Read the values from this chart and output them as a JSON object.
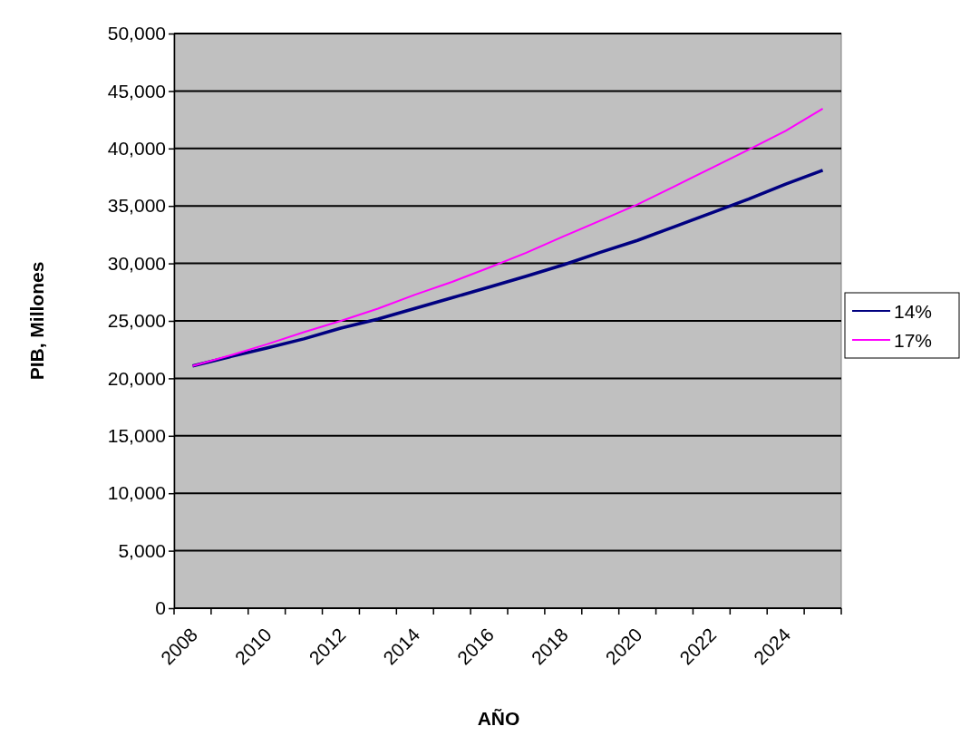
{
  "chart_data": {
    "type": "line",
    "xlabel": "AÑO",
    "ylabel": "PIB, Millones",
    "categories": [
      "2008",
      null,
      "2010",
      null,
      "2012",
      null,
      "2014",
      null,
      "2016",
      null,
      "2018",
      null,
      "2020",
      null,
      "2022",
      null,
      "2024",
      null
    ],
    "series": [
      {
        "name": "14%",
        "color": "#000080",
        "values": [
          21080,
          21870,
          22640,
          23430,
          24370,
          25160,
          26080,
          27010,
          27940,
          28880,
          29870,
          30960,
          32000,
          33200,
          34400,
          35600,
          36900,
          38100
        ]
      },
      {
        "name": "17%",
        "color": "#ff00ff",
        "values": [
          21080,
          21980,
          22960,
          24020,
          25000,
          26060,
          27280,
          28390,
          29630,
          30930,
          32340,
          33720,
          35130,
          36700,
          38300,
          39890,
          41540,
          43460
        ]
      }
    ],
    "ylim": [
      0,
      50000
    ],
    "yticks": [
      {
        "value": 0,
        "label": "0"
      },
      {
        "value": 5000,
        "label": "5,000"
      },
      {
        "value": 10000,
        "label": "10,000"
      },
      {
        "value": 15000,
        "label": "15,000"
      },
      {
        "value": 20000,
        "label": "20,000"
      },
      {
        "value": 25000,
        "label": "25,000"
      },
      {
        "value": 30000,
        "label": "30,000"
      },
      {
        "value": 35000,
        "label": "35,000"
      },
      {
        "value": 40000,
        "label": "40,000"
      },
      {
        "value": 45000,
        "label": "45,000"
      },
      {
        "value": 50000,
        "label": "50,000"
      }
    ],
    "grid": "y",
    "legend": "right",
    "marker": "none",
    "line_style": "solid"
  }
}
